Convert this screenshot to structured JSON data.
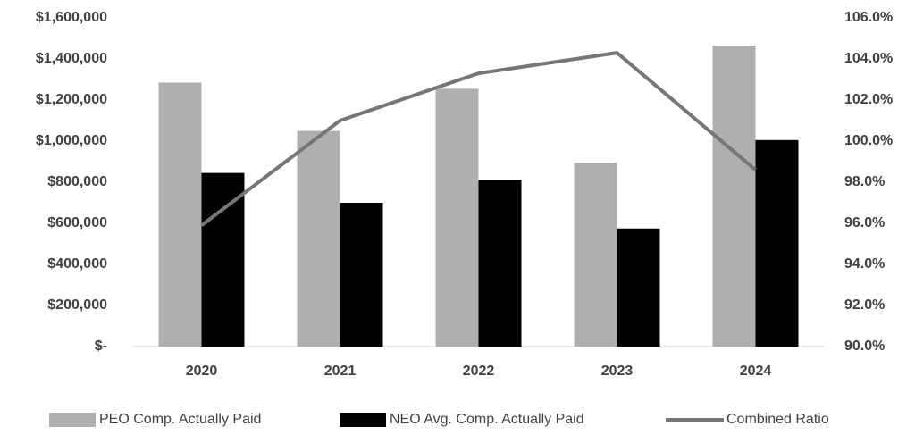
{
  "chart_data": {
    "type": "bar_line",
    "categories": [
      "2020",
      "2021",
      "2022",
      "2023",
      "2024"
    ],
    "series": [
      {
        "name": "PEO Comp. Actually Paid",
        "color": "#aeb0b0",
        "type": "bar",
        "values": [
          1285000,
          1050000,
          1255000,
          895000,
          1465000
        ]
      },
      {
        "name": "NEO Avg. Comp. Actually Paid",
        "color": "#000000",
        "type": "bar",
        "values": [
          845000,
          700000,
          810000,
          575000,
          1005000
        ]
      },
      {
        "name": "Combined Ratio",
        "color": "#767676",
        "type": "line",
        "axis": "y2",
        "values": [
          95.9,
          101.0,
          103.3,
          104.3,
          98.6
        ]
      }
    ],
    "ylim": [
      0,
      1600000
    ],
    "yticks": [
      {
        "value": 0,
        "label": "$-"
      },
      {
        "value": 200000,
        "label": "$200,000"
      },
      {
        "value": 400000,
        "label": "$400,000"
      },
      {
        "value": 600000,
        "label": "$600,000"
      },
      {
        "value": 800000,
        "label": "$800,000"
      },
      {
        "value": 1000000,
        "label": "$1,000,000"
      },
      {
        "value": 1200000,
        "label": "$1,200,000"
      },
      {
        "value": 1400000,
        "label": "$1,400,000"
      },
      {
        "value": 1600000,
        "label": "$1,600,000"
      }
    ],
    "y2lim": [
      90,
      106
    ],
    "y2ticks": [
      {
        "value": 90,
        "label": "90.0%"
      },
      {
        "value": 92,
        "label": "92.0%"
      },
      {
        "value": 94,
        "label": "94.0%"
      },
      {
        "value": 96,
        "label": "96.0%"
      },
      {
        "value": 98,
        "label": "98.0%"
      },
      {
        "value": 100,
        "label": "100.0%"
      },
      {
        "value": 102,
        "label": "102.0%"
      },
      {
        "value": 104,
        "label": "104.0%"
      },
      {
        "value": 106,
        "label": "106.0%"
      }
    ],
    "grid": false,
    "legend": "bottom"
  }
}
